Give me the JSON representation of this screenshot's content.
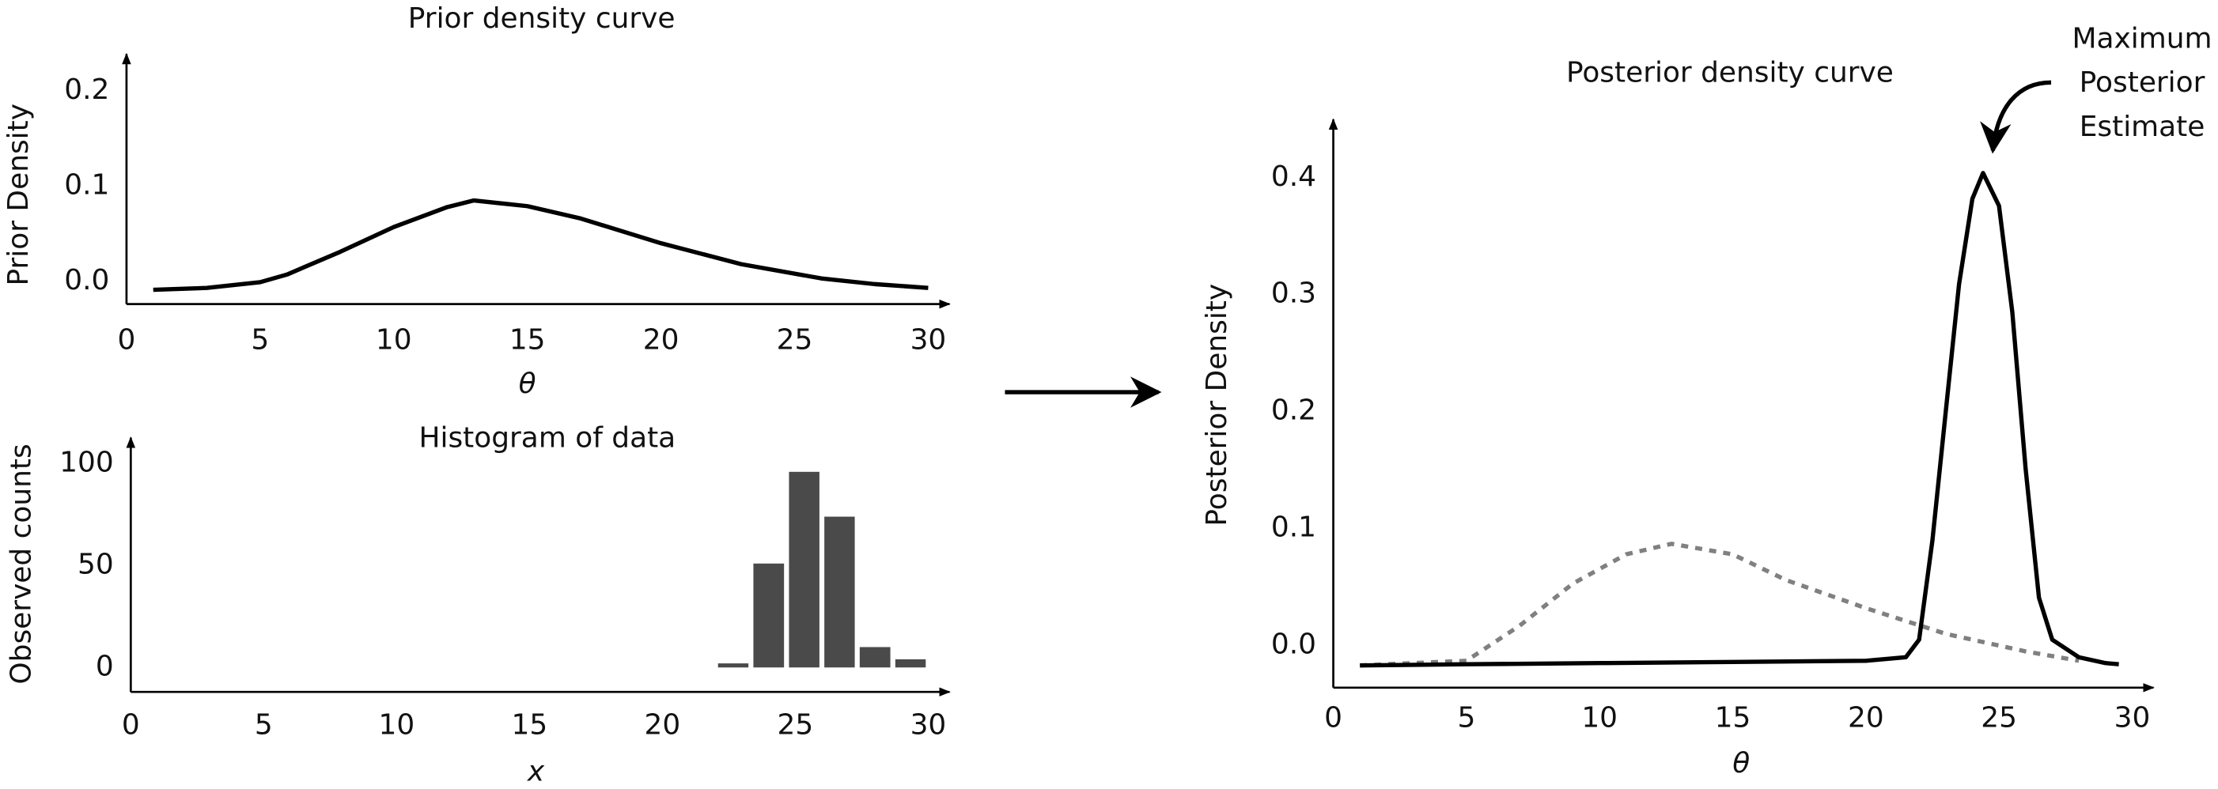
{
  "chart_data": [
    {
      "type": "line",
      "title": "Prior density curve",
      "x_label": "θ",
      "y_label": "Prior Density",
      "xlim": [
        0,
        30
      ],
      "xticks": [
        0,
        5,
        10,
        15,
        20,
        25,
        30
      ],
      "ylim": [
        -0.024,
        0.233
      ],
      "yticks": [
        {
          "value": 0,
          "label": "0.0"
        },
        0.1,
        0.2
      ],
      "series": [
        {
          "color": "#000000",
          "dashed": false,
          "x": [
            1,
            3,
            5,
            6,
            8,
            10,
            12,
            13,
            15,
            17,
            20,
            23,
            26,
            28,
            30
          ],
          "values": [
            -0.009,
            -0.007,
            -0.001,
            0.007,
            0.031,
            0.057,
            0.078,
            0.085,
            0.079,
            0.066,
            0.04,
            0.018,
            0.003,
            -0.003,
            -0.007
          ]
        }
      ]
    },
    {
      "type": "histogram",
      "title": "Histogram of data",
      "x_label": "x",
      "y_label": "Observed counts",
      "xlim": [
        0,
        30
      ],
      "xticks": [
        0,
        5,
        10,
        15,
        20,
        25,
        30
      ],
      "ylim": [
        -12,
        110
      ],
      "yticks": [
        0,
        50,
        100
      ],
      "color": "#4a4a4a",
      "bins": [
        22,
        23.33,
        24.67,
        26,
        27.33,
        28.67,
        30
      ],
      "values": [
        2,
        51,
        96,
        74,
        10,
        4
      ]
    },
    {
      "type": "line",
      "title": "Posterior density curve",
      "x_label": "θ",
      "y_label": "Posterior Density",
      "annotation": [
        "Maximum",
        "Posterior",
        "Estimate"
      ],
      "xlim": [
        0,
        30
      ],
      "xticks": [
        0,
        5,
        10,
        15,
        20,
        25,
        30
      ],
      "ylim": [
        -0.036,
        0.445
      ],
      "yticks": [
        {
          "value": 0,
          "label": "0.0"
        },
        0.1,
        0.2,
        0.3,
        0.4
      ],
      "series": [
        {
          "color": "#808080",
          "dashed": true,
          "x": [
            1,
            5,
            7,
            9,
            11,
            12.7,
            15,
            17,
            20,
            23,
            26,
            28
          ],
          "values": [
            -0.017,
            -0.013,
            0.017,
            0.053,
            0.078,
            0.087,
            0.078,
            0.056,
            0.032,
            0.01,
            -0.005,
            -0.013
          ]
        },
        {
          "color": "#000000",
          "dashed": false,
          "x": [
            1,
            5,
            10,
            15,
            20,
            21.5,
            22,
            22.5,
            23,
            23.5,
            24,
            24.4,
            25,
            25.5,
            26,
            26.5,
            27,
            28,
            29,
            29.5
          ],
          "values": [
            -0.017,
            -0.016,
            -0.015,
            -0.014,
            -0.013,
            -0.01,
            0.005,
            0.09,
            0.2,
            0.309,
            0.382,
            0.404,
            0.376,
            0.285,
            0.151,
            0.041,
            0.005,
            -0.01,
            -0.015,
            -0.016
          ]
        }
      ]
    }
  ]
}
